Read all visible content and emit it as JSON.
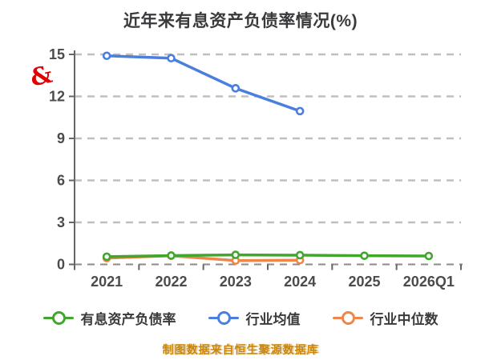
{
  "title": "近年来有息资产负债率情况(%)",
  "watermark": "制图数据来自恒生聚源数据库",
  "logo_glyph": "&",
  "colors": {
    "background": "#ffffff",
    "title_text": "#3a3a3c",
    "axis_label": "#4b4b4d",
    "axis_line": "#666666",
    "gridline": "#c2bfba",
    "watermark_text": "#c9860b",
    "logo_red": "#e30000",
    "marker_fill": "#ffffff"
  },
  "chart_data": {
    "type": "line",
    "title": "近年来有息资产负债率情况(%)",
    "categories": [
      "2021",
      "2022",
      "2023",
      "2024",
      "2025",
      "2026Q1"
    ],
    "series": [
      {
        "name": "有息资产负债率",
        "color": "#41a62e",
        "values": [
          0.55,
          0.63,
          0.68,
          0.66,
          0.62,
          0.6
        ]
      },
      {
        "name": "行业均值",
        "color": "#4a7fe0",
        "values": [
          14.9,
          14.73,
          12.58,
          10.95,
          null,
          null
        ]
      },
      {
        "name": "行业中位数",
        "color": "#ef8549",
        "values": [
          0.45,
          0.62,
          0.27,
          0.3,
          null,
          null
        ]
      }
    ],
    "ylim": [
      0,
      15
    ],
    "yticks": [
      0,
      3,
      6,
      9,
      12,
      15
    ],
    "xlabel": "",
    "ylabel": "",
    "grid": "horizontal-dashed",
    "legend_position": "bottom"
  }
}
